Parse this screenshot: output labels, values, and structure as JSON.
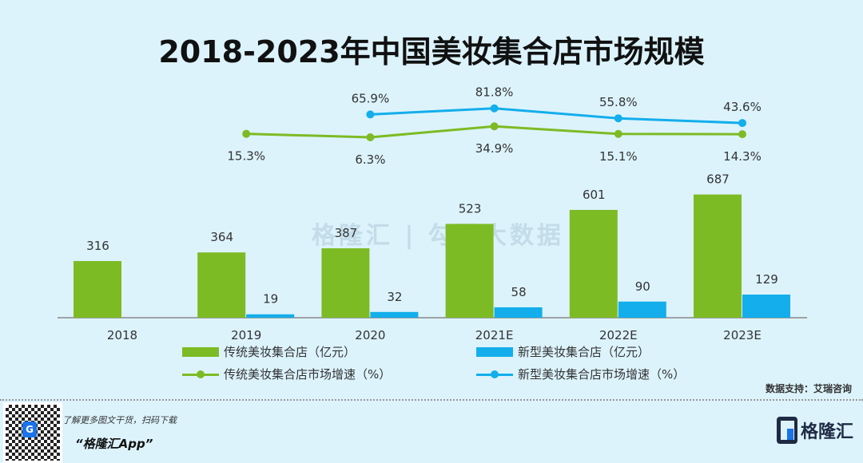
{
  "title": "2018-2023年中国美妆集合店市场规模",
  "chart_data": {
    "type": "bar+line",
    "title": "2018-2023年中国美妆集合店市场规模",
    "categories": [
      "2018",
      "2019",
      "2020",
      "2021E",
      "2022E",
      "2023E"
    ],
    "series": [
      {
        "name": "传统美妆集合店（亿元）",
        "type": "bar",
        "color": "#7dbb24",
        "values": [
          316,
          364,
          387,
          523,
          601,
          687
        ]
      },
      {
        "name": "新型美妆集合店（亿元）",
        "type": "bar",
        "color": "#13aeeb",
        "values": [
          null,
          19,
          32,
          58,
          90,
          129
        ]
      },
      {
        "name": "传统美妆集合店市场增速（%）",
        "type": "line",
        "color": "#7dbb24",
        "values": [
          null,
          15.3,
          6.3,
          34.9,
          15.1,
          14.3
        ]
      },
      {
        "name": "新型美妆集合店市场增速（%）",
        "type": "line",
        "color": "#13aeeb",
        "values": [
          null,
          null,
          65.9,
          81.8,
          55.8,
          43.6
        ]
      }
    ]
  },
  "source": "数据支持：艾瑞咨询",
  "watermark": "格隆汇 | 勾股大数据",
  "footer": {
    "promo_line": "了解更多图文干货，扫码下载",
    "app_name": "“格隆汇App”",
    "logo_text": "格隆汇"
  }
}
